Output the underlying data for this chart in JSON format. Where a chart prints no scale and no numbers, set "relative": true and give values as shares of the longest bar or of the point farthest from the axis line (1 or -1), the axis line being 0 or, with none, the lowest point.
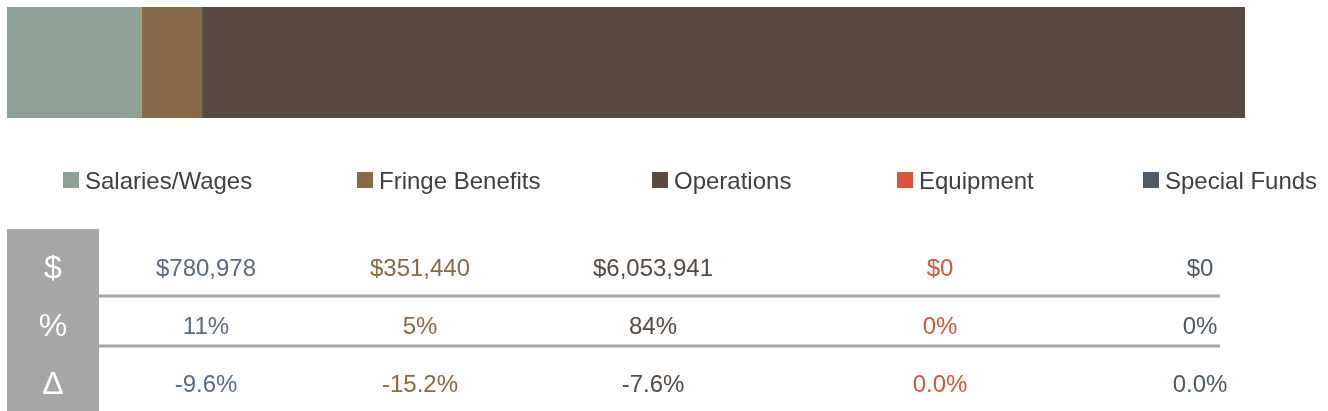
{
  "chart_data": {
    "type": "bar",
    "orientation": "horizontal",
    "stacked": true,
    "relative": true,
    "categories": [
      null
    ],
    "legend": "bottom",
    "series": [
      {
        "name": "Salaries/Wages",
        "color": "#8fa197",
        "values": [
          0.10868
        ]
      },
      {
        "name": "Fringe Benefits",
        "color": "#876a48",
        "values": [
          0.0489
        ]
      },
      {
        "name": "Operations",
        "color": "#574841",
        "values": [
          0.84242
        ]
      },
      {
        "name": "Equipment",
        "color": "#d9553a",
        "values": [
          0
        ]
      },
      {
        "name": "Special Funds",
        "color": "#4d5a68",
        "values": [
          0
        ]
      }
    ],
    "annotations": [
      "$",
      "%",
      "Δ",
      "$780,978",
      "$351,440",
      "$6,053,941",
      "$0",
      "$0",
      "11%",
      "5%",
      "84%",
      "0%",
      "0%",
      "-9.6%",
      "-15.2%",
      "-7.6%",
      "0.0%",
      "0.0%"
    ]
  }
}
